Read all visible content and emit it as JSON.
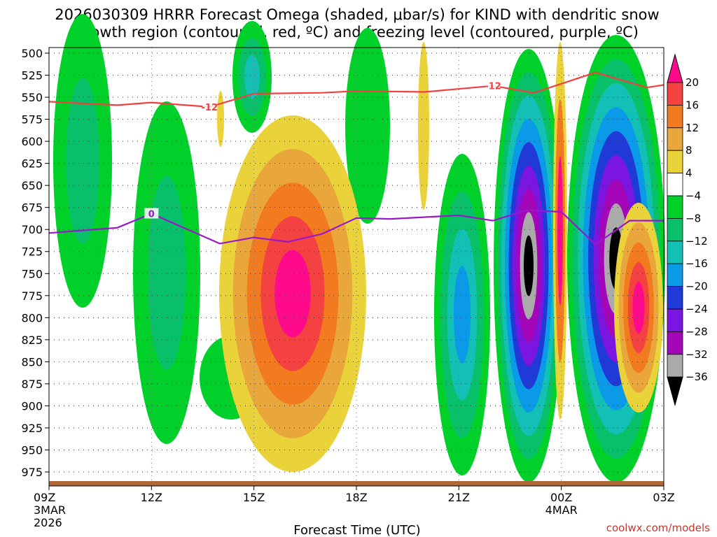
{
  "chart_data": {
    "type": "heatmap",
    "title_line1": "2026030309 HRRR Forecast Omega (shaded, μbar/s) for KIND with dendritic snow",
    "title_line2": "growth region (contoured, red, ºC) and freezing level (contoured, purple, ºC)",
    "xlabel": "Forecast Time (UTC)",
    "credit": "coolwx.com/models",
    "y_ticks": [
      "500",
      "525",
      "550",
      "575",
      "600",
      "625",
      "650",
      "675",
      "700",
      "725",
      "750",
      "775",
      "800",
      "825",
      "850",
      "875",
      "900",
      "925",
      "950",
      "975"
    ],
    "y_range": [
      500,
      990
    ],
    "x_range_hours": [
      0,
      18
    ],
    "x_ticks": [
      {
        "hour": 0,
        "label": "09Z",
        "sub1": "3MAR",
        "sub2": "2026"
      },
      {
        "hour": 3,
        "label": "12Z"
      },
      {
        "hour": 6,
        "label": "15Z"
      },
      {
        "hour": 9,
        "label": "18Z"
      },
      {
        "hour": 12,
        "label": "21Z"
      },
      {
        "hour": 15,
        "label": "00Z",
        "sub1": "4MAR"
      },
      {
        "hour": 18,
        "label": "03Z"
      }
    ],
    "colorbar": {
      "labels": [
        "20",
        "16",
        "12",
        "8",
        "4",
        "−4",
        "−8",
        "−12",
        "−16",
        "−20",
        "−24",
        "−28",
        "−32",
        "−36"
      ],
      "colors": [
        "#ff0a8a",
        "#f44141",
        "#f27a1f",
        "#e8a63b",
        "#e9d23a",
        "#ffffff",
        "#00d02a",
        "#08c06a",
        "#12c0b5",
        "#0a9ae8",
        "#1f3ad6",
        "#7a16e0",
        "#a406b8",
        "#aaaaaa",
        "#000000"
      ],
      "accent": "#ff0a8a"
    },
    "dgz_contour": {
      "label": "-12",
      "color": "#f04040",
      "points": [
        [
          0,
          555
        ],
        [
          2,
          559
        ],
        [
          3,
          556
        ],
        [
          4.7,
          561
        ],
        [
          6,
          546
        ],
        [
          8,
          545
        ],
        [
          9,
          543
        ],
        [
          11,
          544
        ],
        [
          13,
          537
        ],
        [
          14.2,
          545
        ],
        [
          16,
          522
        ],
        [
          17.5,
          539
        ],
        [
          18,
          536
        ]
      ]
    },
    "freezing_contour": {
      "label": "0",
      "color": "#9a18c8",
      "points": [
        [
          0,
          704
        ],
        [
          2,
          698
        ],
        [
          3,
          682
        ],
        [
          5,
          716
        ],
        [
          6,
          709
        ],
        [
          7,
          714
        ],
        [
          8,
          705
        ],
        [
          9,
          687
        ],
        [
          10,
          688
        ],
        [
          12,
          684
        ],
        [
          13,
          690
        ],
        [
          14,
          678
        ],
        [
          15,
          680
        ],
        [
          16,
          717
        ],
        [
          17,
          690
        ],
        [
          18,
          690
        ]
      ]
    },
    "ground_color": "#b0683a",
    "gridlines": "dotted"
  }
}
